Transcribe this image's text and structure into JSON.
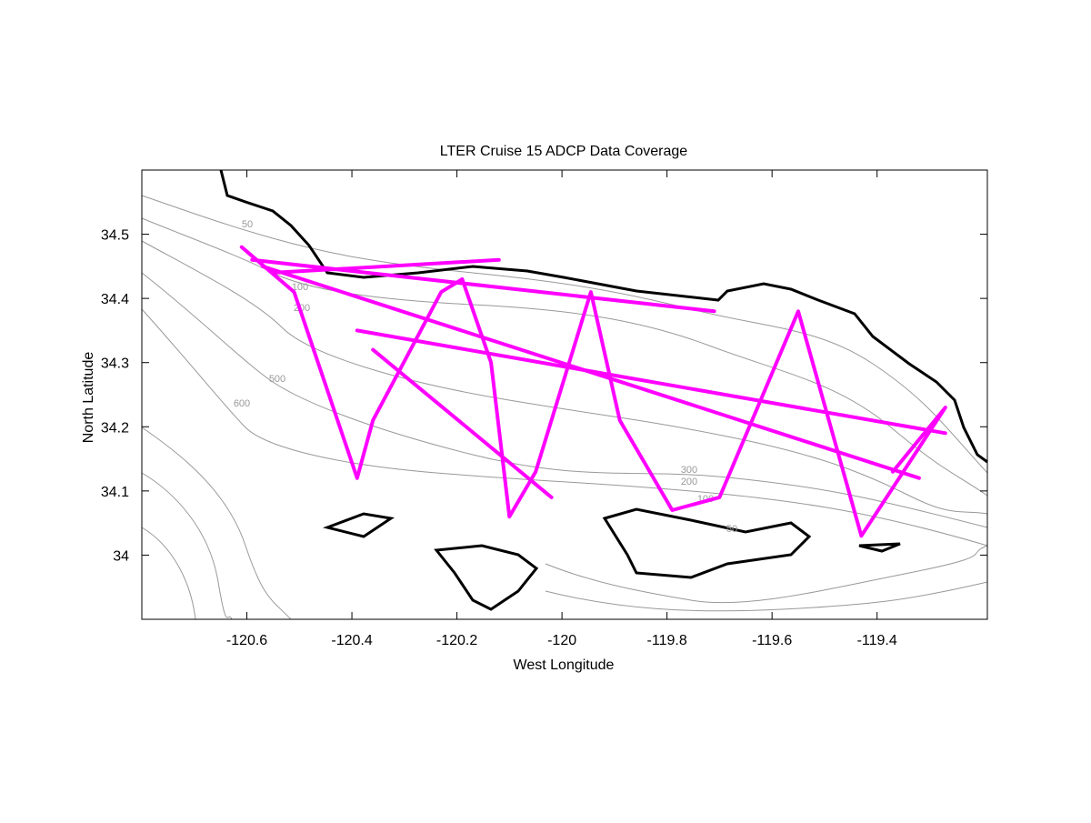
{
  "chart_data": {
    "type": "line",
    "title": "LTER Cruise 15 ADCP Data Coverage",
    "x_label": "West Longitude",
    "y_label": "North Latitude",
    "xlim": [
      -120.8,
      -119.19
    ],
    "ylim": [
      33.9,
      34.6
    ],
    "xticks": [
      -120.6,
      -120.4,
      -120.2,
      -120,
      -119.8,
      -119.6,
      -119.4
    ],
    "yticks": [
      34,
      34.1,
      34.2,
      34.3,
      34.4,
      34.5
    ],
    "contour_labels": [
      "50",
      "100",
      "200",
      "500",
      "600",
      "300",
      "200",
      "100",
      "50"
    ],
    "x": [
      -120.61,
      -120.51,
      -120.39,
      -120.36,
      -120.23,
      -120.19,
      -120.135,
      -120.1,
      -120.05,
      -119.945,
      -119.89,
      -119.79,
      -119.7,
      -119.55,
      -119.43,
      -119.27,
      -119.37,
      null,
      -120.39,
      -119.27,
      null,
      -120.59,
      -119.71,
      null,
      -120.57,
      -119.32,
      null,
      -120.36,
      -120.02,
      null,
      -120.55,
      -120.12
    ],
    "series": [
      {
        "color": "#ff00ff",
        "values": [
          34.48,
          34.41,
          34.12,
          34.21,
          34.41,
          34.43,
          34.3,
          34.06,
          34.13,
          34.41,
          34.21,
          34.07,
          34.09,
          34.38,
          34.03,
          34.23,
          34.13,
          null,
          34.35,
          34.19,
          null,
          34.46,
          34.38,
          null,
          34.45,
          34.12,
          null,
          34.32,
          34.09,
          null,
          34.44,
          34.46
        ]
      }
    ]
  }
}
